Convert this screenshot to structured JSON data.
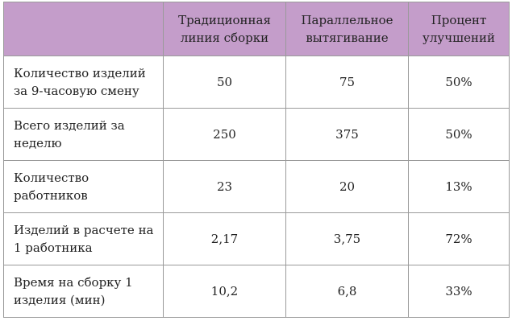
{
  "table": {
    "header": [
      "Традиционная\nлиния сборки",
      "Параллельное\nвытягивание",
      "Процент\nулучшений"
    ],
    "rows": [
      [
        "Количество изделий\nза 9-часовую смену",
        "50",
        "75",
        "50%"
      ],
      [
        "Всего изделий за\nнеделю",
        "250",
        "375",
        "50%"
      ],
      [
        "Количество\nработников",
        "23",
        "20",
        "13%"
      ],
      [
        "Изделий в расчете на\n1 работника",
        "2,17",
        "3,75",
        "72%"
      ],
      [
        "Время на сборку 1\nизделия (мин)",
        "10,2",
        "6,8",
        "33%"
      ]
    ]
  }
}
